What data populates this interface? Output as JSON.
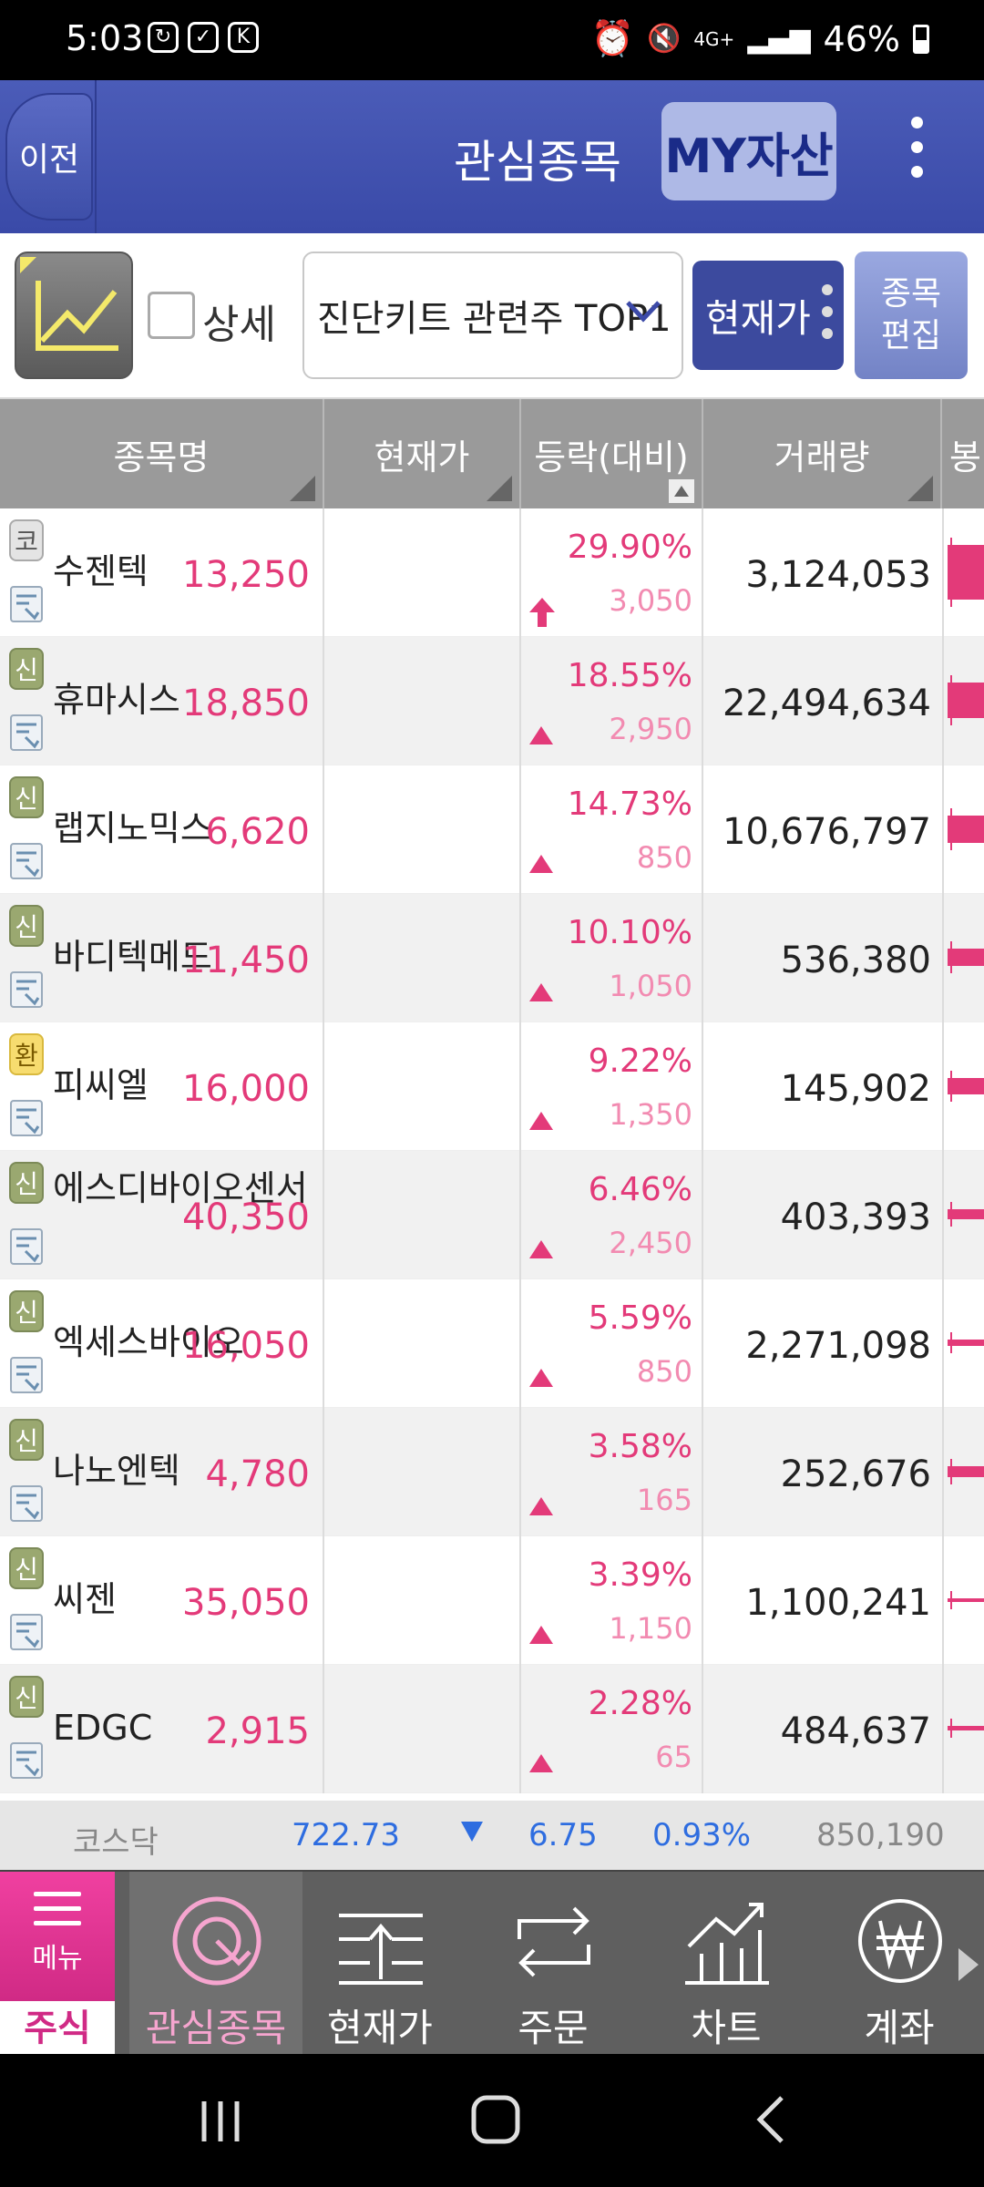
{
  "status": {
    "time": "5:03",
    "battery": "46%",
    "network": "4G+"
  },
  "header": {
    "back_label": "이전",
    "title": "관심종목",
    "my_label": "MY자산"
  },
  "toolbar": {
    "detail_label": "상세",
    "detail_checked": false,
    "group_selected": "진단키트 관련주 TOP1",
    "view_label": "현재가",
    "edit_label_line1": "종목",
    "edit_label_line2": "편집"
  },
  "table": {
    "columns": [
      "종목명",
      "현재가",
      "등락(대비)",
      "거래량",
      "봉"
    ],
    "rows": [
      {
        "market": "코",
        "name": "수젠텍",
        "price": "13,250",
        "pct": "29.90%",
        "diff": "3,050",
        "volume": "3,124,053",
        "trend": "upper-limit",
        "candle": 1.0
      },
      {
        "market": "신",
        "name": "휴마시스",
        "price": "18,850",
        "pct": "18.55%",
        "diff": "2,950",
        "volume": "22,494,634",
        "trend": "up",
        "candle": 0.65
      },
      {
        "market": "신",
        "name": "랩지노믹스",
        "price": "6,620",
        "pct": "14.73%",
        "diff": "850",
        "volume": "10,676,797",
        "trend": "up",
        "candle": 0.5
      },
      {
        "market": "신",
        "name": "바디텍메드",
        "price": "11,450",
        "pct": "10.10%",
        "diff": "1,050",
        "volume": "536,380",
        "trend": "up",
        "candle": 0.32
      },
      {
        "market": "환",
        "name": "피씨엘",
        "price": "16,000",
        "pct": "9.22%",
        "diff": "1,350",
        "volume": "145,902",
        "trend": "up",
        "candle": 0.3
      },
      {
        "market": "신",
        "name": "에스디바이오센서",
        "price": "40,350",
        "pct": "6.46%",
        "diff": "2,450",
        "volume": "403,393",
        "trend": "up",
        "candle": 0.18
      },
      {
        "market": "신",
        "name": "엑세스바이오",
        "price": "16,050",
        "pct": "5.59%",
        "diff": "850",
        "volume": "2,271,098",
        "trend": "up",
        "candle": 0.12
      },
      {
        "market": "신",
        "name": "나노엔텍",
        "price": "4,780",
        "pct": "3.58%",
        "diff": "165",
        "volume": "252,676",
        "trend": "up",
        "candle": 0.2
      },
      {
        "market": "신",
        "name": "씨젠",
        "price": "35,050",
        "pct": "3.39%",
        "diff": "1,150",
        "volume": "1,100,241",
        "trend": "up",
        "candle": 0.06
      },
      {
        "market": "신",
        "name": "EDGC",
        "price": "2,915",
        "pct": "2.28%",
        "diff": "65",
        "volume": "484,637",
        "trend": "up",
        "candle": 0.08
      }
    ]
  },
  "index": {
    "name": "코스닥",
    "value": "722.73",
    "change": "6.75",
    "pct": "0.93%",
    "volume": "850,190",
    "direction": "down"
  },
  "nav": {
    "menu_label": "메뉴",
    "stock_label": "주식",
    "items": [
      {
        "label": "관심종목",
        "icon": "watchlist-icon",
        "active": true
      },
      {
        "label": "현재가",
        "icon": "price-icon",
        "active": false
      },
      {
        "label": "주문",
        "icon": "order-icon",
        "active": false
      },
      {
        "label": "차트",
        "icon": "chart-icon",
        "active": false
      },
      {
        "label": "계좌",
        "icon": "account-won-icon",
        "active": false
      }
    ]
  },
  "colors": {
    "up": "#e33a79",
    "down": "#2e6de0",
    "header": "#3f4fab",
    "accent_pink": "#d02a85"
  }
}
